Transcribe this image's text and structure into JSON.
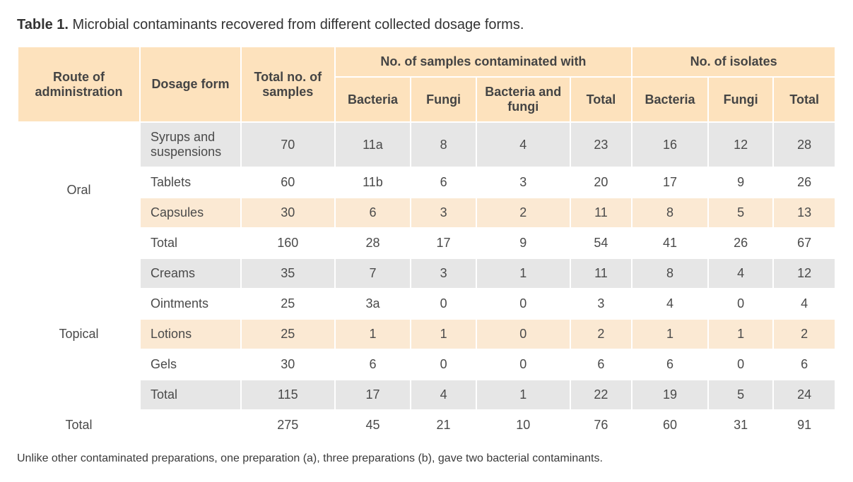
{
  "title_prefix": "Table 1.",
  "title_text": " Microbial contaminants recovered from different collected dosage forms.",
  "footnote": "Unlike other contaminated preparations, one preparation (a), three preparations (b), gave two bacterial contaminants.",
  "header_colors": {
    "header_bg": "#fde2bd",
    "band_grey": "#e6e6e6",
    "band_peach": "#fbe9d3",
    "band_white": "#ffffff",
    "text": "#4a4a4a"
  },
  "columns": {
    "route": "Route of administration",
    "dosage": "Dosage form",
    "total_samples": "Total no. of samples",
    "contam_group": "No. of samples contaminated with",
    "contam_bacteria": "Bacteria",
    "contam_fungi": "Fungi",
    "contam_both": "Bacteria and fungi",
    "contam_total": "Total",
    "isolates_group": "No. of isolates",
    "iso_bacteria": "Bacteria",
    "iso_fungi": "Fungi",
    "iso_total": "Total"
  },
  "rows": [
    {
      "route": "Oral",
      "route_span": 4,
      "dosage": "Syrups and suspensions",
      "total": "70",
      "c_bact": "11a",
      "c_fungi": "8",
      "c_bf": "4",
      "c_tot": "23",
      "i_bact": "16",
      "i_fungi": "12",
      "i_tot": "28",
      "band": "grey"
    },
    {
      "dosage": "Tablets",
      "total": "60",
      "c_bact": "11b",
      "c_fungi": "6",
      "c_bf": "3",
      "c_tot": "20",
      "i_bact": "17",
      "i_fungi": "9",
      "i_tot": "26",
      "band": "white"
    },
    {
      "dosage": "Capsules",
      "total": "30",
      "c_bact": "6",
      "c_fungi": "3",
      "c_bf": "2",
      "c_tot": "11",
      "i_bact": "8",
      "i_fungi": "5",
      "i_tot": "13",
      "band": "peach"
    },
    {
      "dosage": "Total",
      "total": "160",
      "c_bact": "28",
      "c_fungi": "17",
      "c_bf": "9",
      "c_tot": "54",
      "i_bact": "41",
      "i_fungi": "26",
      "i_tot": "67",
      "band": "white"
    },
    {
      "route": "Topical",
      "route_span": 5,
      "dosage": "Creams",
      "total": "35",
      "c_bact": "7",
      "c_fungi": "3",
      "c_bf": "1",
      "c_tot": "11",
      "i_bact": "8",
      "i_fungi": "4",
      "i_tot": "12",
      "band": "grey"
    },
    {
      "dosage": "Ointments",
      "total": "25",
      "c_bact": "3a",
      "c_fungi": "0",
      "c_bf": "0",
      "c_tot": "3",
      "i_bact": "4",
      "i_fungi": "0",
      "i_tot": "4",
      "band": "white"
    },
    {
      "dosage": "Lotions",
      "total": "25",
      "c_bact": "1",
      "c_fungi": "1",
      "c_bf": "0",
      "c_tot": "2",
      "i_bact": "1",
      "i_fungi": "1",
      "i_tot": "2",
      "band": "peach"
    },
    {
      "dosage": "Gels",
      "total": "30",
      "c_bact": "6",
      "c_fungi": "0",
      "c_bf": "0",
      "c_tot": "6",
      "i_bact": "6",
      "i_fungi": "0",
      "i_tot": "6",
      "band": "white"
    },
    {
      "dosage": "Total",
      "total": "115",
      "c_bact": "17",
      "c_fungi": "4",
      "c_bf": "1",
      "c_tot": "22",
      "i_bact": "19",
      "i_fungi": "5",
      "i_tot": "24",
      "band": "grey"
    },
    {
      "route": "Total",
      "route_full": true,
      "dosage": "",
      "total": "275",
      "c_bact": "45",
      "c_fungi": "21",
      "c_bf": "10",
      "c_tot": "76",
      "i_bact": "60",
      "i_fungi": "31",
      "i_tot": "91",
      "band": "white"
    }
  ]
}
